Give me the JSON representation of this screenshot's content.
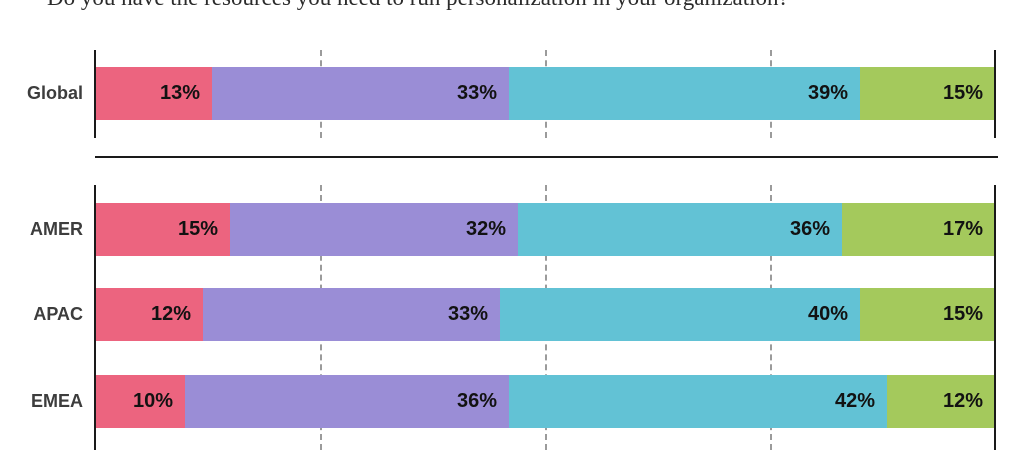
{
  "title": "Do you have the resources you need to run personalization in your organization?",
  "chart_data": {
    "type": "bar",
    "subtype": "horizontal-stacked-100",
    "title": "Do you have the resources you need to run personalization in your organization?",
    "unit": "%",
    "xlim": [
      0,
      100
    ],
    "gridlines_percent": [
      0,
      25,
      50,
      75,
      100
    ],
    "gridline_style": "solid at 0 and 100, dashed at 25/50/75",
    "legend_position": "none-visible",
    "categories": [
      "Global",
      "AMER",
      "APAC",
      "EMEA"
    ],
    "segments": [
      {
        "name": "segment-1",
        "color": "#EC647F"
      },
      {
        "name": "segment-2",
        "color": "#9A8DD6"
      },
      {
        "name": "segment-3",
        "color": "#62C2D5"
      },
      {
        "name": "segment-4",
        "color": "#A4C95C"
      }
    ],
    "rows": [
      {
        "label": "Global",
        "values": [
          13,
          33,
          39,
          15
        ],
        "labels": [
          "13%",
          "33%",
          "39%",
          "15%"
        ]
      },
      {
        "label": "AMER",
        "values": [
          15,
          32,
          36,
          17
        ],
        "labels": [
          "15%",
          "32%",
          "36%",
          "17%"
        ]
      },
      {
        "label": "APAC",
        "values": [
          12,
          33,
          40,
          15
        ],
        "labels": [
          "12%",
          "33%",
          "40%",
          "15%"
        ]
      },
      {
        "label": "EMEA",
        "values": [
          10,
          36,
          42,
          12
        ],
        "labels": [
          "10%",
          "36%",
          "42%",
          "12%"
        ]
      }
    ],
    "colors": {
      "axis_line": "#1a1a1a",
      "gridline_dashed": "#9b9b9b",
      "value_label_text": "#121212",
      "row_label_text": "#3d3d3d"
    }
  }
}
